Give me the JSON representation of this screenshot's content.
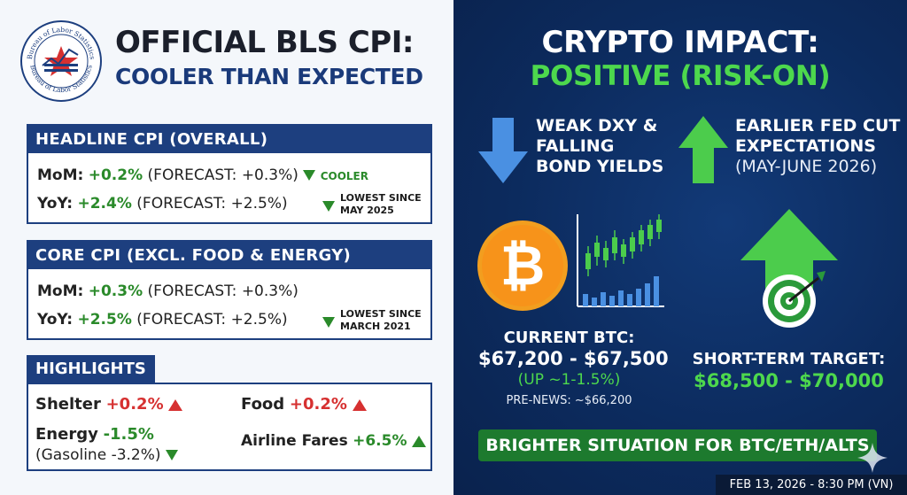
{
  "seal": {
    "ring_text_top": "Bureau of Labor Statistics",
    "ring_text_bottom": "Bureau of Labor Statistics"
  },
  "header": {
    "title": "OFFICIAL BLS CPI:",
    "subtitle": "COOLER THAN EXPECTED"
  },
  "headline": {
    "title": "HEADLINE CPI (OVERALL)",
    "mom_label": "MoM:",
    "mom_value": "+0.2%",
    "mom_forecast": "(FORECAST: +0.3%)",
    "mom_note": "COOLER",
    "yoy_label": "YoY:",
    "yoy_value": "+2.4%",
    "yoy_forecast": "(FORECAST: +2.5%)",
    "yoy_note_1": "LOWEST SINCE",
    "yoy_note_2": "MAY 2025"
  },
  "core": {
    "title": "CORE CPI (EXCL. FOOD & ENERGY)",
    "mom_label": "MoM:",
    "mom_value": "+0.3%",
    "mom_forecast": "(FORECAST: +0.3%)",
    "yoy_label": "YoY:",
    "yoy_value": "+2.5%",
    "yoy_forecast": "(FORECAST: +2.5%)",
    "yoy_note_1": "LOWEST SINCE",
    "yoy_note_2": "MARCH 2021"
  },
  "highlights": {
    "title": "HIGHLIGHTS",
    "shelter_label": "Shelter",
    "shelter_value": "+0.2%",
    "food_label": "Food",
    "food_value": "+0.2%",
    "energy_label": "Energy",
    "energy_value": "-1.5%",
    "gasoline": "(Gasoline -3.2%)",
    "airline_label": "Airline Fares",
    "airline_value": "+6.5%"
  },
  "crypto": {
    "title": "CRYPTO IMPACT:",
    "subtitle": "POSITIVE (RISK-ON)",
    "dxy_1": "WEAK DXY &",
    "dxy_2": "FALLING",
    "dxy_3": "BOND YIELDS",
    "fed_1": "EARLIER FED CUT",
    "fed_2": "EXPECTATIONS",
    "fed_3": "(MAY-JUNE 2026)",
    "btc_label": "CURRENT BTC:",
    "btc_range": "$67,200 - $67,500",
    "btc_change": "(UP ~1-1.5%)",
    "pre_news": "PRE-NEWS: ~$66,200",
    "target_label": "SHORT-TERM TARGET:",
    "target_range": "$68,500 - $70,000",
    "banner": "BRIGHTER SITUATION FOR BTC/ETH/ALTS"
  },
  "footer": {
    "timestamp": "FEB 13, 2026 - 8:30 PM (VN)"
  },
  "colors": {
    "navy": "#1d3f7f",
    "green": "#2a8a2a",
    "red": "#d63030",
    "bright_green": "#4dd84d",
    "btc_orange": "#f39c12"
  }
}
